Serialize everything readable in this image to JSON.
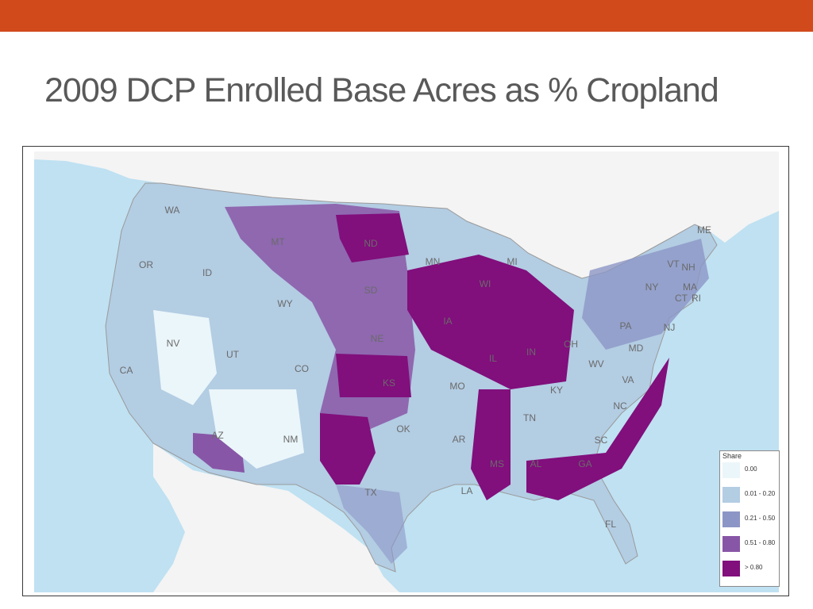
{
  "slide": {
    "title": "2009 DCP Enrolled Base Acres as % Cropland",
    "accent_color": "#d14a1c"
  },
  "map": {
    "colors": {
      "water": "#bfe1f2",
      "land_outside": "#f4f4f4",
      "border": "#9a9a9a"
    },
    "state_labels": [
      "WA",
      "OR",
      "ID",
      "MT",
      "ND",
      "SD",
      "MN",
      "WI",
      "MI",
      "ME",
      "VT",
      "NH",
      "NY",
      "MA",
      "CT",
      "RI",
      "WY",
      "NV",
      "UT",
      "CO",
      "NE",
      "IA",
      "IL",
      "IN",
      "OH",
      "PA",
      "NJ",
      "MD",
      "WV",
      "VA",
      "KS",
      "MO",
      "KY",
      "NC",
      "TN",
      "SC",
      "CA",
      "AZ",
      "NM",
      "OK",
      "AR",
      "MS",
      "AL",
      "GA",
      "TX",
      "LA",
      "FL"
    ],
    "legend": {
      "title": "Share",
      "classes": [
        {
          "label": "0.00",
          "color": "#ebf6fa"
        },
        {
          "label": "0.01 - 0.20",
          "color": "#b3cde3"
        },
        {
          "label": "0.21 - 0.50",
          "color": "#8c96c6"
        },
        {
          "label": "0.51 - 0.80",
          "color": "#8856a7"
        },
        {
          "label": "> 0.80",
          "color": "#810f7c"
        }
      ]
    }
  }
}
